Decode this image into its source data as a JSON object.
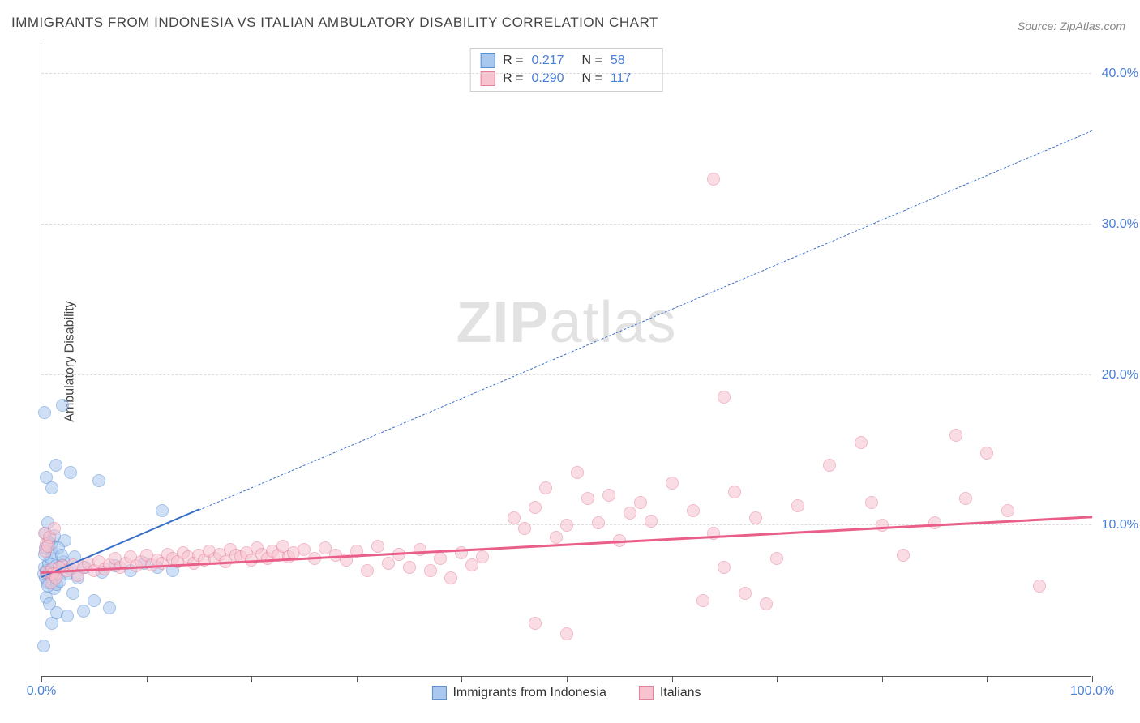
{
  "title": "IMMIGRANTS FROM INDONESIA VS ITALIAN AMBULATORY DISABILITY CORRELATION CHART",
  "source": "Source: ZipAtlas.com",
  "watermark_bold": "ZIP",
  "watermark_light": "atlas",
  "ylabel": "Ambulatory Disability",
  "chart": {
    "type": "scatter",
    "xlim": [
      0,
      100
    ],
    "ylim": [
      0,
      42
    ],
    "background_color": "#ffffff",
    "grid_color": "#dddddd",
    "axis_color": "#555555",
    "xtick_positions": [
      0,
      10,
      20,
      30,
      40,
      50,
      60,
      70,
      80,
      90,
      100
    ],
    "xtick_labels": {
      "0": "0.0%",
      "100": "100.0%"
    },
    "ytick_positions": [
      10,
      20,
      30,
      40
    ],
    "ytick_labels": {
      "10": "10.0%",
      "20": "20.0%",
      "30": "30.0%",
      "40": "40.0%"
    },
    "label_color": "#4a7fd8",
    "label_fontsize": 16,
    "point_radius": 8,
    "point_opacity": 0.55,
    "series": [
      {
        "name": "Immigrants from Indonesia",
        "key": "indonesia",
        "fill_color": "#a8c8ef",
        "stroke_color": "#5b8fd6",
        "r": "0.217",
        "n": "58",
        "regression": {
          "x1": 0,
          "y1": 6.5,
          "x2": 15,
          "y2": 11.0,
          "extend_x2": 100,
          "extend_y2": 36.2,
          "line_color": "#3a6fc9",
          "line_width": 2,
          "dash": true
        },
        "points": [
          [
            0.2,
            6.8
          ],
          [
            0.3,
            7.2
          ],
          [
            0.4,
            6.5
          ],
          [
            0.5,
            7.0
          ],
          [
            0.6,
            6.2
          ],
          [
            0.7,
            7.5
          ],
          [
            0.8,
            6.9
          ],
          [
            0.9,
            7.8
          ],
          [
            1.0,
            6.4
          ],
          [
            1.1,
            8.2
          ],
          [
            1.2,
            5.8
          ],
          [
            1.3,
            6.7
          ],
          [
            1.4,
            7.3
          ],
          [
            0.5,
            5.2
          ],
          [
            0.8,
            4.8
          ],
          [
            1.5,
            6.1
          ],
          [
            2.0,
            7.4
          ],
          [
            2.2,
            9.0
          ],
          [
            2.5,
            6.8
          ],
          [
            2.8,
            7.1
          ],
          [
            3.0,
            5.5
          ],
          [
            3.2,
            7.9
          ],
          [
            1.8,
            6.3
          ],
          [
            2.1,
            7.6
          ],
          [
            0.4,
            9.5
          ],
          [
            0.9,
            8.8
          ],
          [
            1.6,
            8.5
          ],
          [
            0.6,
            10.2
          ],
          [
            1.2,
            9.3
          ],
          [
            0.3,
            8.1
          ],
          [
            0.5,
            13.2
          ],
          [
            1.0,
            12.5
          ],
          [
            1.4,
            14.0
          ],
          [
            2.8,
            13.5
          ],
          [
            5.5,
            13.0
          ],
          [
            11.5,
            11.0
          ],
          [
            0.3,
            17.5
          ],
          [
            2.0,
            18.0
          ],
          [
            0.2,
            2.0
          ],
          [
            1.0,
            3.5
          ],
          [
            1.5,
            4.2
          ],
          [
            2.5,
            4.0
          ],
          [
            4.0,
            4.3
          ],
          [
            5.0,
            5.0
          ],
          [
            6.5,
            4.5
          ],
          [
            0.4,
            8.5
          ],
          [
            0.7,
            8.9
          ],
          [
            1.1,
            7.1
          ],
          [
            1.9,
            8.0
          ],
          [
            0.6,
            6.0
          ],
          [
            3.5,
            6.5
          ],
          [
            4.2,
            7.2
          ],
          [
            5.8,
            6.9
          ],
          [
            7.0,
            7.3
          ],
          [
            8.5,
            7.0
          ],
          [
            9.8,
            7.5
          ],
          [
            11.0,
            7.2
          ],
          [
            12.5,
            7.0
          ]
        ]
      },
      {
        "name": "Italians",
        "key": "italians",
        "fill_color": "#f7c3cf",
        "stroke_color": "#e87f9a",
        "r": "0.290",
        "n": "117",
        "regression": {
          "x1": 0,
          "y1": 6.8,
          "x2": 100,
          "y2": 10.5,
          "line_color": "#ea5f8a",
          "line_width": 2.5,
          "dash": false
        },
        "points": [
          [
            0.5,
            6.9
          ],
          [
            1.0,
            7.1
          ],
          [
            1.5,
            6.8
          ],
          [
            2.0,
            7.3
          ],
          [
            2.5,
            7.0
          ],
          [
            3.0,
            7.4
          ],
          [
            3.5,
            6.7
          ],
          [
            4.0,
            7.2
          ],
          [
            4.5,
            7.5
          ],
          [
            5.0,
            7.0
          ],
          [
            5.5,
            7.6
          ],
          [
            6.0,
            7.1
          ],
          [
            6.5,
            7.4
          ],
          [
            7.0,
            7.8
          ],
          [
            7.5,
            7.2
          ],
          [
            8.0,
            7.5
          ],
          [
            8.5,
            7.9
          ],
          [
            9.0,
            7.3
          ],
          [
            9.5,
            7.6
          ],
          [
            10.0,
            8.0
          ],
          [
            10.5,
            7.4
          ],
          [
            11.0,
            7.7
          ],
          [
            11.5,
            7.5
          ],
          [
            12.0,
            8.1
          ],
          [
            12.5,
            7.8
          ],
          [
            13.0,
            7.6
          ],
          [
            13.5,
            8.2
          ],
          [
            14.0,
            7.9
          ],
          [
            14.5,
            7.5
          ],
          [
            15.0,
            8.0
          ],
          [
            15.5,
            7.7
          ],
          [
            16.0,
            8.3
          ],
          [
            16.5,
            7.8
          ],
          [
            17.0,
            8.1
          ],
          [
            17.5,
            7.6
          ],
          [
            18.0,
            8.4
          ],
          [
            18.5,
            8.0
          ],
          [
            19.0,
            7.9
          ],
          [
            19.5,
            8.2
          ],
          [
            20.0,
            7.7
          ],
          [
            20.5,
            8.5
          ],
          [
            21.0,
            8.1
          ],
          [
            21.5,
            7.8
          ],
          [
            22.0,
            8.3
          ],
          [
            22.5,
            8.0
          ],
          [
            23.0,
            8.6
          ],
          [
            23.5,
            7.9
          ],
          [
            24.0,
            8.2
          ],
          [
            25.0,
            8.4
          ],
          [
            26.0,
            7.8
          ],
          [
            27.0,
            8.5
          ],
          [
            28.0,
            8.0
          ],
          [
            29.0,
            7.7
          ],
          [
            30.0,
            8.3
          ],
          [
            31.0,
            7.0
          ],
          [
            32.0,
            8.6
          ],
          [
            33.0,
            7.5
          ],
          [
            34.0,
            8.1
          ],
          [
            35.0,
            7.2
          ],
          [
            36.0,
            8.4
          ],
          [
            37.0,
            7.0
          ],
          [
            38.0,
            7.8
          ],
          [
            39.0,
            6.5
          ],
          [
            40.0,
            8.2
          ],
          [
            41.0,
            7.4
          ],
          [
            42.0,
            7.9
          ],
          [
            45.0,
            10.5
          ],
          [
            46.0,
            9.8
          ],
          [
            47.0,
            11.2
          ],
          [
            48.0,
            12.5
          ],
          [
            49.0,
            9.2
          ],
          [
            50.0,
            10.0
          ],
          [
            51.0,
            13.5
          ],
          [
            52.0,
            11.8
          ],
          [
            53.0,
            10.2
          ],
          [
            54.0,
            12.0
          ],
          [
            55.0,
            9.0
          ],
          [
            56.0,
            10.8
          ],
          [
            57.0,
            11.5
          ],
          [
            58.0,
            10.3
          ],
          [
            60.0,
            12.8
          ],
          [
            62.0,
            11.0
          ],
          [
            63.0,
            5.0
          ],
          [
            64.0,
            9.5
          ],
          [
            65.0,
            7.2
          ],
          [
            66.0,
            12.2
          ],
          [
            67.0,
            5.5
          ],
          [
            68.0,
            10.5
          ],
          [
            69.0,
            4.8
          ],
          [
            70.0,
            7.8
          ],
          [
            72.0,
            11.3
          ],
          [
            65.0,
            18.5
          ],
          [
            75.0,
            14.0
          ],
          [
            78.0,
            15.5
          ],
          [
            79.0,
            11.5
          ],
          [
            80.0,
            10.0
          ],
          [
            82.0,
            8.0
          ],
          [
            85.0,
            10.2
          ],
          [
            87.0,
            16.0
          ],
          [
            88.0,
            11.8
          ],
          [
            90.0,
            14.8
          ],
          [
            92.0,
            11.0
          ],
          [
            95.0,
            6.0
          ],
          [
            64.0,
            33.0
          ],
          [
            0.3,
            9.5
          ],
          [
            0.5,
            8.8
          ],
          [
            0.8,
            9.2
          ],
          [
            1.2,
            9.8
          ],
          [
            0.4,
            8.3
          ],
          [
            0.6,
            8.6
          ],
          [
            0.9,
            6.2
          ],
          [
            1.1,
            6.8
          ],
          [
            1.4,
            6.5
          ],
          [
            1.7,
            7.2
          ],
          [
            47.0,
            3.5
          ],
          [
            50.0,
            2.8
          ]
        ]
      }
    ]
  },
  "legend_bottom": [
    {
      "label": "Immigrants from Indonesia",
      "fill": "#a8c8ef",
      "stroke": "#5b8fd6"
    },
    {
      "label": "Italians",
      "fill": "#f7c3cf",
      "stroke": "#e87f9a"
    }
  ]
}
